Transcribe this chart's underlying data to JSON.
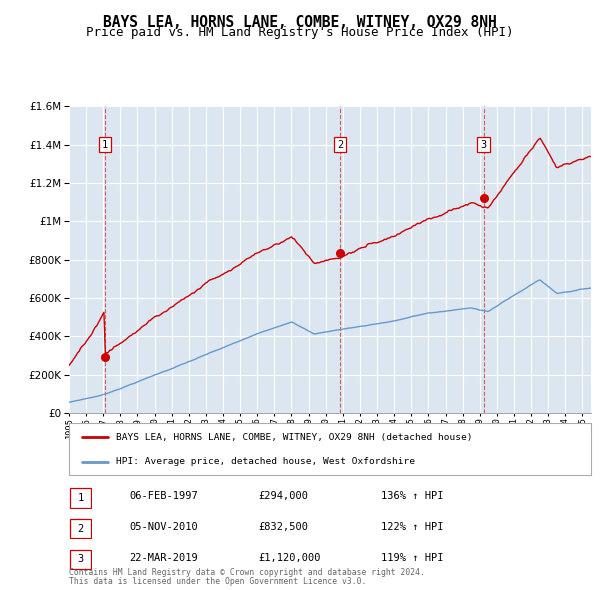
{
  "title": "BAYS LEA, HORNS LANE, COMBE, WITNEY, OX29 8NH",
  "subtitle": "Price paid vs. HM Land Registry's House Price Index (HPI)",
  "sale_year_floats": [
    1997.093,
    2010.843,
    2019.219
  ],
  "sale_prices": [
    294000,
    832500,
    1120000
  ],
  "sale_labels": [
    "1",
    "2",
    "3"
  ],
  "sale_info": [
    {
      "num": "1",
      "date": "06-FEB-1997",
      "price": "£294,000",
      "hpi": "136% ↑ HPI"
    },
    {
      "num": "2",
      "date": "05-NOV-2010",
      "price": "£832,500",
      "hpi": "122% ↑ HPI"
    },
    {
      "num": "3",
      "date": "22-MAR-2019",
      "price": "£1,120,000",
      "hpi": "119% ↑ HPI"
    }
  ],
  "legend_line1": "BAYS LEA, HORNS LANE, COMBE, WITNEY, OX29 8NH (detached house)",
  "legend_line2": "HPI: Average price, detached house, West Oxfordshire",
  "footer1": "Contains HM Land Registry data © Crown copyright and database right 2024.",
  "footer2": "This data is licensed under the Open Government Licence v3.0.",
  "red_color": "#cc0000",
  "blue_color": "#6699cc",
  "bg_color": "#dce6f1",
  "grid_color": "#ffffff",
  "xmin": 1995.0,
  "xmax": 2025.5,
  "ymin": 0,
  "ymax": 1600000,
  "ytick_step": 200000,
  "title_fontsize": 10.5,
  "subtitle_fontsize": 9
}
